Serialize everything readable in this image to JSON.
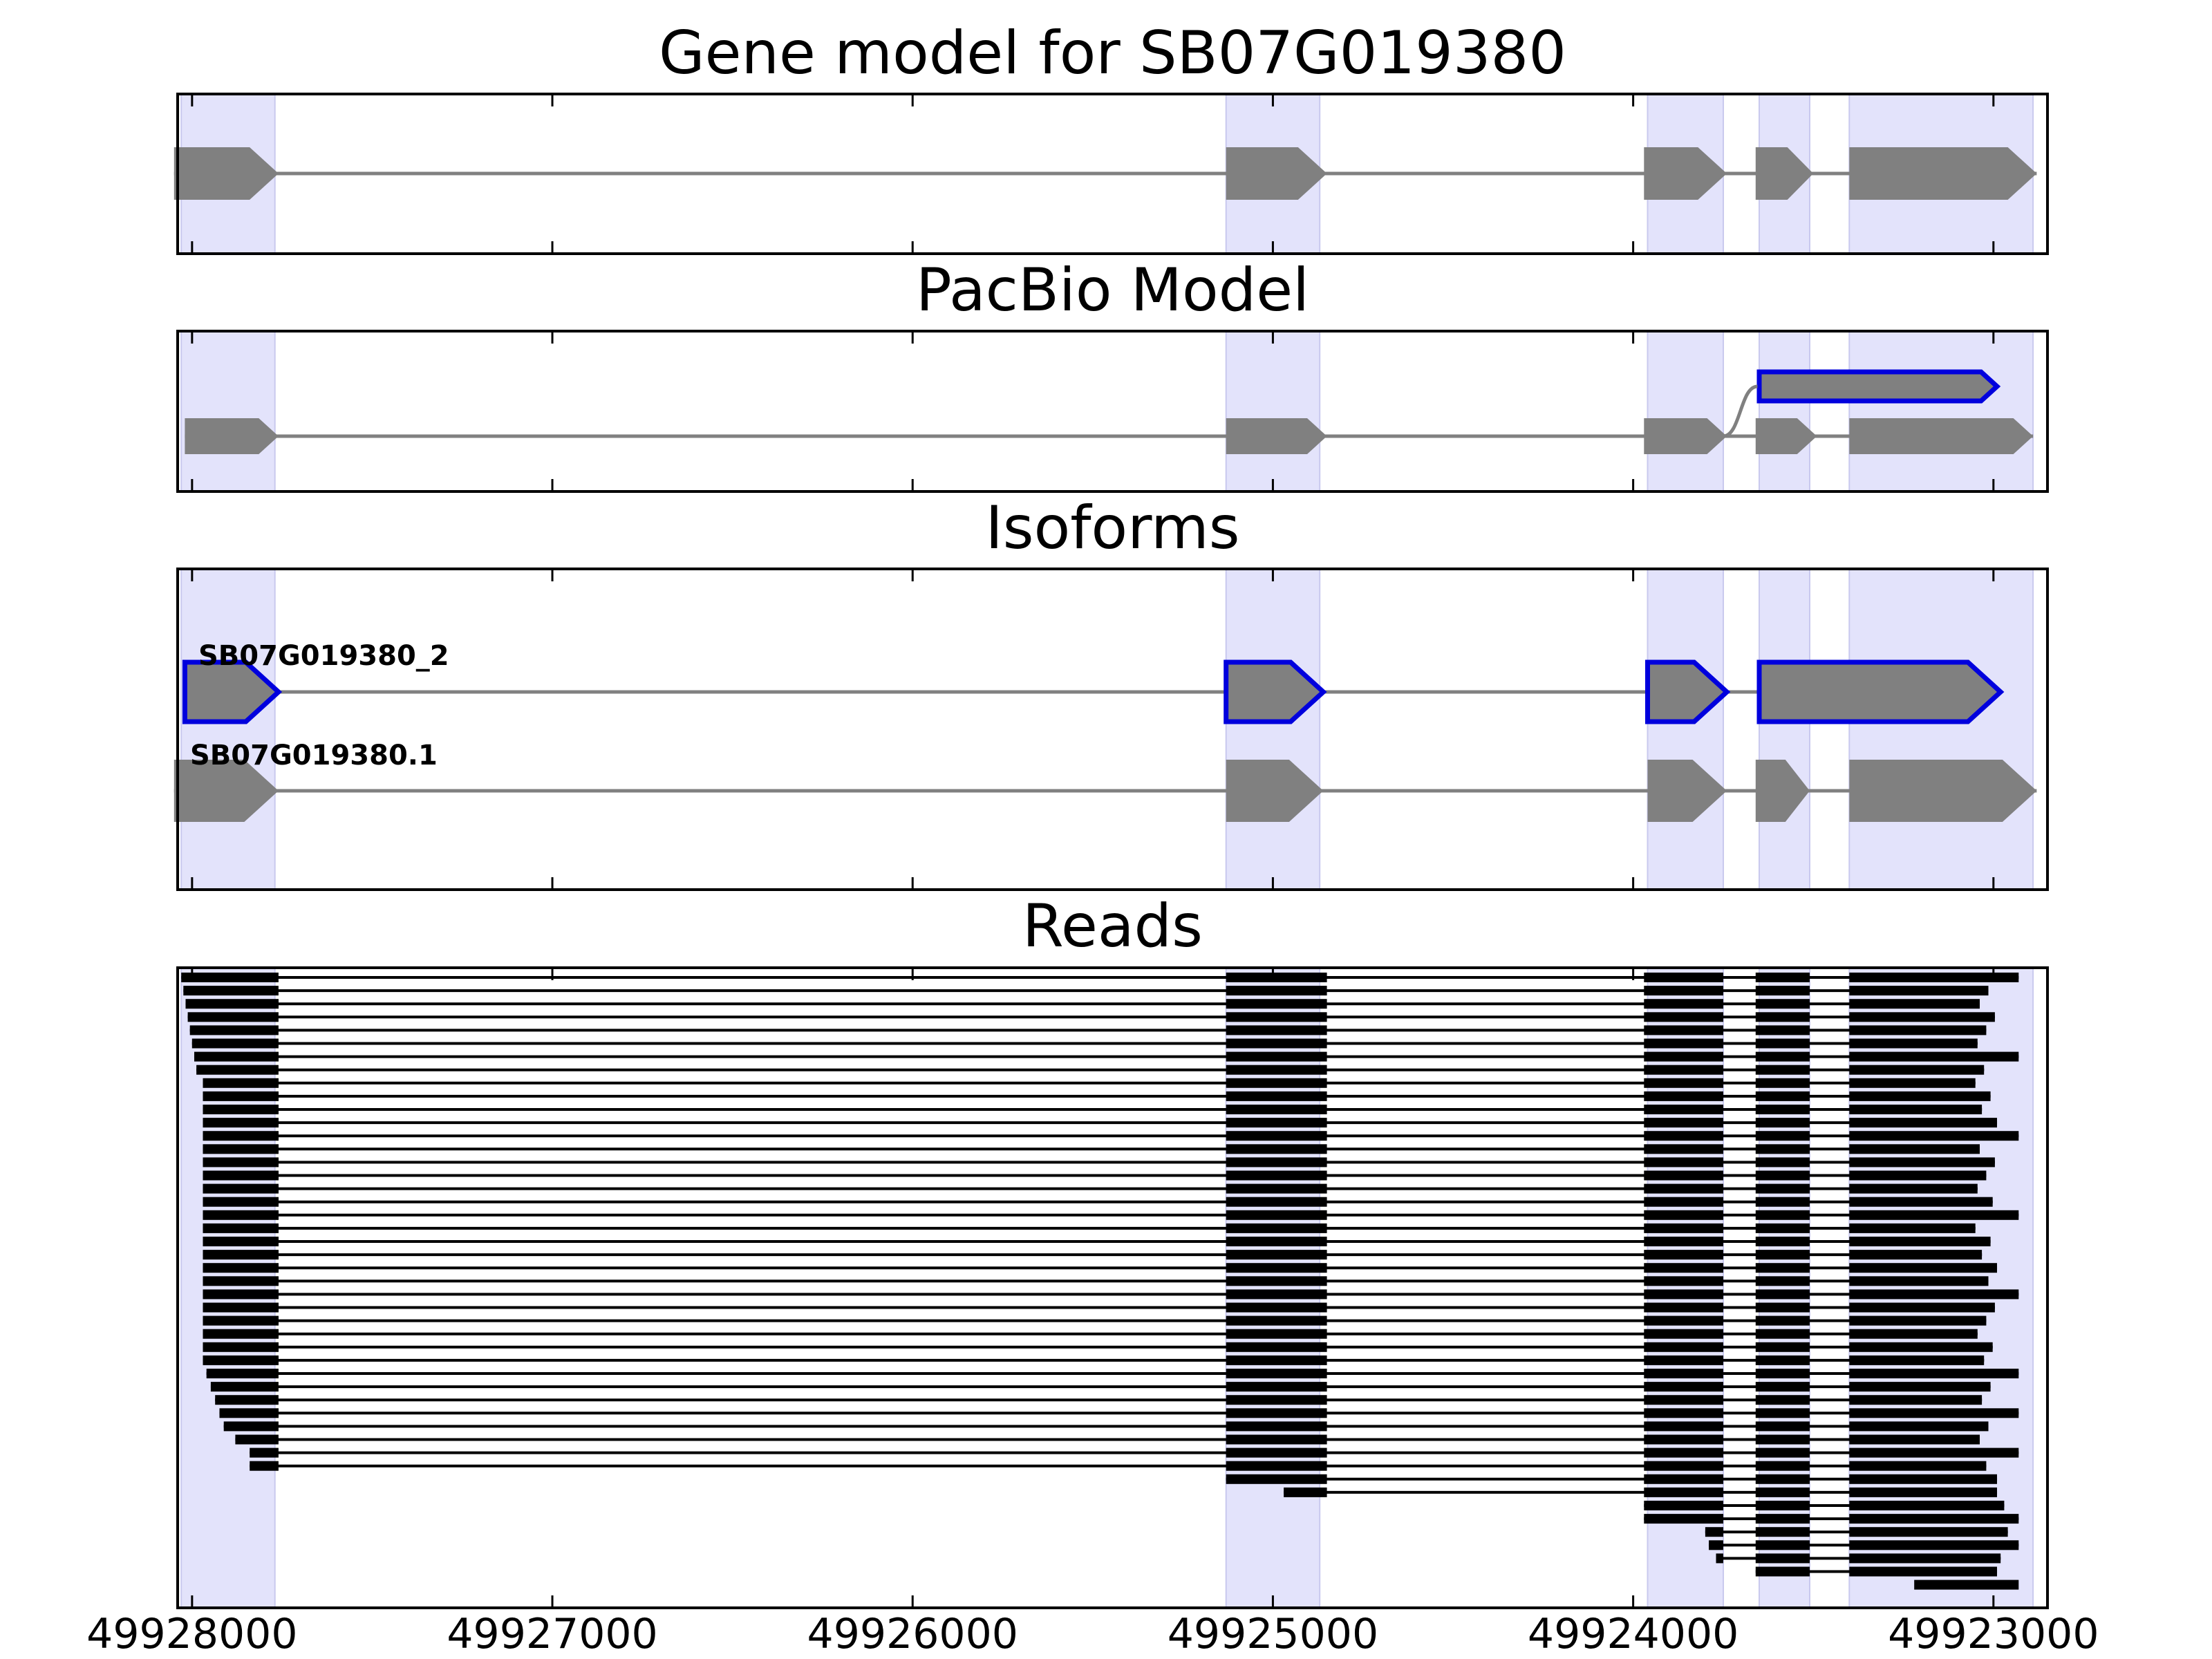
{
  "chart_data": {
    "type": "gene-track",
    "colors": {
      "exon_fill": "#808080",
      "intron_line": "#808080",
      "highlight_band": "#e3e3fb",
      "pacbio_outline": "#0000dd",
      "read_color": "#000000",
      "axis_color": "#000000"
    },
    "x_axis": {
      "direction": "reversed",
      "range": [
        49928040,
        49922850
      ],
      "ticks": [
        49928000,
        49927000,
        49926000,
        49925000,
        49924000,
        49923000
      ],
      "tick_labels": [
        "49928000",
        "49927000",
        "49926000",
        "49925000",
        "49924000",
        "49923000"
      ]
    },
    "exon_bands": [
      [
        49928030,
        49927770
      ],
      [
        49925130,
        49924870
      ],
      [
        49923960,
        49923750
      ],
      [
        49923650,
        49923510
      ],
      [
        49923400,
        49922890
      ]
    ],
    "panels": [
      {
        "title": "Gene model for SB07G019380",
        "tracks": [
          {
            "label": "",
            "outlined": false,
            "exons": [
              [
                49928050,
                49927760
              ],
              [
                49925130,
                49924850
              ],
              [
                49923970,
                49923740
              ],
              [
                49923660,
                49923500
              ],
              [
                49923400,
                49922880
              ]
            ]
          }
        ]
      },
      {
        "title": "PacBio Model",
        "tracks": [
          {
            "label": "",
            "outlined": true,
            "exons": [
              [
                49923650,
                49922990
              ]
            ]
          },
          {
            "label": "",
            "outlined": false,
            "exons": [
              [
                49928020,
                49927760
              ],
              [
                49925130,
                49924850
              ],
              [
                49923970,
                49923740
              ],
              [
                49923660,
                49923490
              ],
              [
                49923400,
                49922890
              ]
            ]
          }
        ]
      },
      {
        "title": "Isoforms",
        "tracks": [
          {
            "label": "SB07G019380_2",
            "outlined": true,
            "exons": [
              [
                49928020,
                49927760
              ],
              [
                49925130,
                49924860
              ],
              [
                49923960,
                49923740
              ],
              [
                49923650,
                49922980
              ]
            ]
          },
          {
            "label": "SB07G019380.1",
            "outlined": false,
            "exons": [
              [
                49928050,
                49927760
              ],
              [
                49925130,
                49924860
              ],
              [
                49923960,
                49923740
              ],
              [
                49923660,
                49923510
              ],
              [
                49923400,
                49922880
              ]
            ]
          }
        ]
      },
      {
        "title": "Reads",
        "read_count": 47
      }
    ]
  }
}
